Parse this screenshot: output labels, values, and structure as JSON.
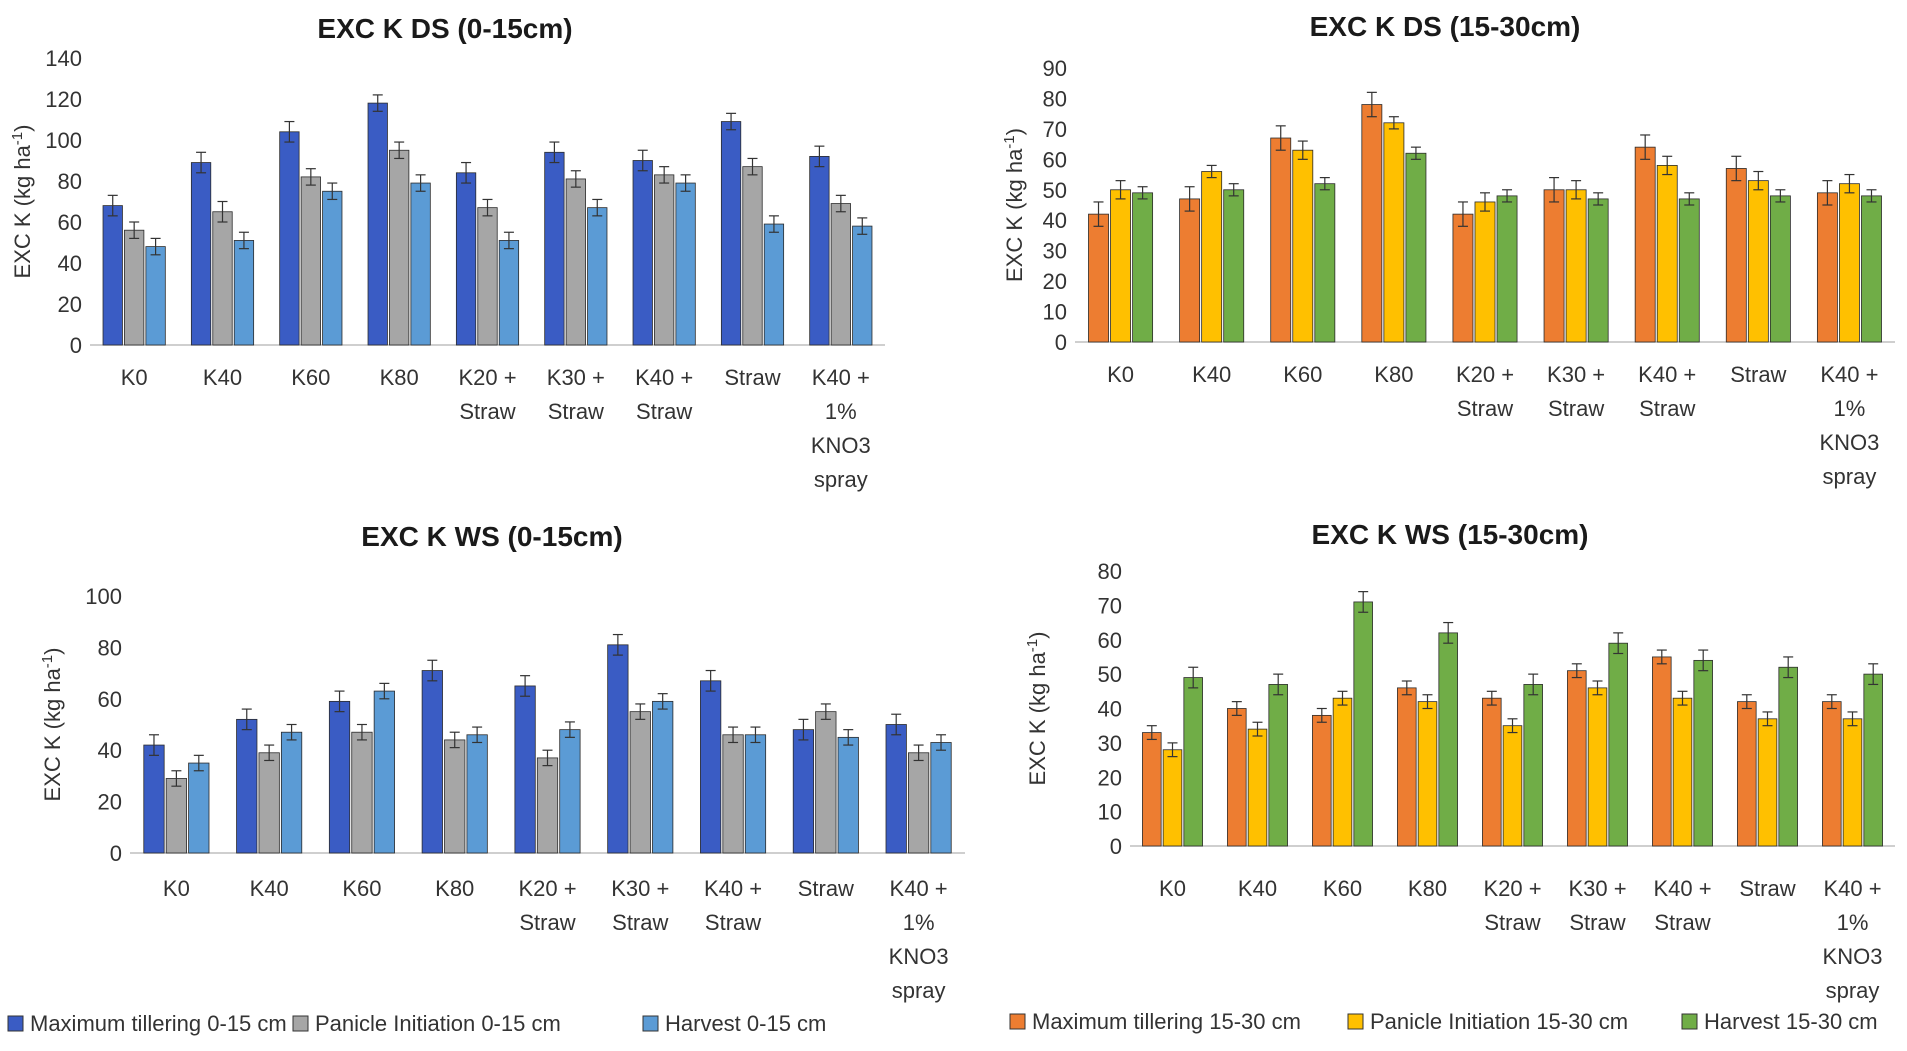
{
  "chart_data": [
    {
      "type": "bar",
      "title": "EXC K DS (0-15cm)",
      "ylabel_main": "EXC K (kg ha",
      "ylabel_sup": "-1",
      "ylabel_end": ")",
      "xlabel": "",
      "ylim": [
        0,
        140
      ],
      "ytick_step": 20,
      "categories": [
        [
          "K0"
        ],
        [
          "K40"
        ],
        [
          "K60"
        ],
        [
          "K80"
        ],
        [
          "K20 +",
          "Straw"
        ],
        [
          "K30 +",
          "Straw"
        ],
        [
          "K40 +",
          "Straw"
        ],
        [
          "Straw"
        ],
        [
          "K40 +",
          "1%",
          "KNO3",
          "spray"
        ]
      ],
      "series": [
        {
          "name": "Maximum tillering 0-15 cm",
          "color": "#3a5cc4",
          "values": [
            68,
            89,
            104,
            118,
            84,
            94,
            90,
            109,
            92
          ],
          "errors": [
            5,
            5,
            5,
            4,
            5,
            5,
            5,
            4,
            5
          ]
        },
        {
          "name": "Panicle Initiation 0-15 cm",
          "color": "#a6a6a6",
          "values": [
            56,
            65,
            82,
            95,
            67,
            81,
            83,
            87,
            69
          ],
          "errors": [
            4,
            5,
            4,
            4,
            4,
            4,
            4,
            4,
            4
          ]
        },
        {
          "name": "Harvest 0-15 cm",
          "color": "#5b9bd5",
          "values": [
            48,
            51,
            75,
            79,
            51,
            67,
            79,
            59,
            58
          ],
          "errors": [
            4,
            4,
            4,
            4,
            4,
            4,
            4,
            4,
            4
          ]
        }
      ]
    },
    {
      "type": "bar",
      "title": "EXC K DS (15-30cm)",
      "ylabel_main": "EXC K (kg ha",
      "ylabel_sup": "-1",
      "ylabel_end": ")",
      "xlabel": "",
      "ylim": [
        0,
        90
      ],
      "ytick_step": 10,
      "categories": [
        [
          "K0"
        ],
        [
          "K40"
        ],
        [
          "K60"
        ],
        [
          "K80"
        ],
        [
          "K20 +",
          "Straw"
        ],
        [
          "K30 +",
          "Straw"
        ],
        [
          "K40 +",
          "Straw"
        ],
        [
          "Straw"
        ],
        [
          "K40 +",
          "1%",
          "KNO3",
          "spray"
        ]
      ],
      "series": [
        {
          "name": "Maximum tillering 15-30 cm",
          "color": "#ed7d31",
          "values": [
            42,
            47,
            67,
            78,
            42,
            50,
            64,
            57,
            49
          ],
          "errors": [
            4,
            4,
            4,
            4,
            4,
            4,
            4,
            4,
            4
          ]
        },
        {
          "name": "Panicle Initiation 15-30 cm",
          "color": "#ffc000",
          "values": [
            50,
            56,
            63,
            72,
            46,
            50,
            58,
            53,
            52
          ],
          "errors": [
            3,
            2,
            3,
            2,
            3,
            3,
            3,
            3,
            3
          ]
        },
        {
          "name": "Harvest 15-30 cm",
          "color": "#70ad47",
          "values": [
            49,
            50,
            52,
            62,
            48,
            47,
            47,
            48,
            48
          ],
          "errors": [
            2,
            2,
            2,
            2,
            2,
            2,
            2,
            2,
            2
          ]
        }
      ]
    },
    {
      "type": "bar",
      "title": "EXC K WS (0-15cm)",
      "ylabel_main": "EXC K (kg ha",
      "ylabel_sup": "-1",
      "ylabel_end": ")",
      "xlabel": "",
      "ylim": [
        0,
        100
      ],
      "ytick_step": 20,
      "categories": [
        [
          "K0"
        ],
        [
          "K40"
        ],
        [
          "K60"
        ],
        [
          "K80"
        ],
        [
          "K20 +",
          "Straw"
        ],
        [
          "K30 +",
          "Straw"
        ],
        [
          "K40 +",
          "Straw"
        ],
        [
          "Straw"
        ],
        [
          "K40 +",
          "1%",
          "KNO3",
          "spray"
        ]
      ],
      "series": [
        {
          "name": "Maximum tillering 0-15 cm",
          "color": "#3a5cc4",
          "values": [
            42,
            52,
            59,
            71,
            65,
            81,
            67,
            48,
            50
          ],
          "errors": [
            4,
            4,
            4,
            4,
            4,
            4,
            4,
            4,
            4
          ]
        },
        {
          "name": "Panicle Initiation 0-15 cm",
          "color": "#a6a6a6",
          "values": [
            29,
            39,
            47,
            44,
            37,
            55,
            46,
            55,
            39
          ],
          "errors": [
            3,
            3,
            3,
            3,
            3,
            3,
            3,
            3,
            3
          ]
        },
        {
          "name": "Harvest 0-15 cm",
          "color": "#5b9bd5",
          "values": [
            35,
            47,
            63,
            46,
            48,
            59,
            46,
            45,
            43
          ],
          "errors": [
            3,
            3,
            3,
            3,
            3,
            3,
            3,
            3,
            3
          ]
        }
      ]
    },
    {
      "type": "bar",
      "title": "EXC K WS (15-30cm)",
      "ylabel_main": "EXC K (kg ha",
      "ylabel_sup": "-1",
      "ylabel_end": ")",
      "xlabel": "",
      "ylim": [
        0,
        80
      ],
      "ytick_step": 10,
      "categories": [
        [
          "K0"
        ],
        [
          "K40"
        ],
        [
          "K60"
        ],
        [
          "K80"
        ],
        [
          "K20 +",
          "Straw"
        ],
        [
          "K30 +",
          "Straw"
        ],
        [
          "K40 +",
          "Straw"
        ],
        [
          "Straw"
        ],
        [
          "K40 +",
          "1%",
          "KNO3",
          "spray"
        ]
      ],
      "series": [
        {
          "name": "Maximum tillering 15-30 cm",
          "color": "#ed7d31",
          "values": [
            33,
            40,
            38,
            46,
            43,
            51,
            55,
            42,
            42
          ],
          "errors": [
            2,
            2,
            2,
            2,
            2,
            2,
            2,
            2,
            2
          ]
        },
        {
          "name": "Panicle Initiation 15-30 cm",
          "color": "#ffc000",
          "values": [
            28,
            34,
            43,
            42,
            35,
            46,
            43,
            37,
            37
          ],
          "errors": [
            2,
            2,
            2,
            2,
            2,
            2,
            2,
            2,
            2
          ]
        },
        {
          "name": "Harvest 15-30 cm",
          "color": "#70ad47",
          "values": [
            49,
            47,
            71,
            62,
            47,
            59,
            54,
            52,
            50
          ],
          "errors": [
            3,
            3,
            3,
            3,
            3,
            3,
            3,
            3,
            3
          ]
        }
      ]
    }
  ],
  "legends": [
    {
      "items": [
        {
          "label": "Maximum tillering 0-15 cm",
          "color": "#3a5cc4"
        },
        {
          "label": "Panicle Initiation 0-15 cm",
          "color": "#a6a6a6"
        },
        {
          "label": "Harvest 0-15 cm",
          "color": "#5b9bd5"
        }
      ]
    },
    {
      "items": [
        {
          "label": "Maximum tillering 15-30 cm",
          "color": "#ed7d31"
        },
        {
          "label": "Panicle Initiation 15-30 cm",
          "color": "#ffc000"
        },
        {
          "label": "Harvest 15-30 cm",
          "color": "#70ad47"
        }
      ]
    }
  ]
}
